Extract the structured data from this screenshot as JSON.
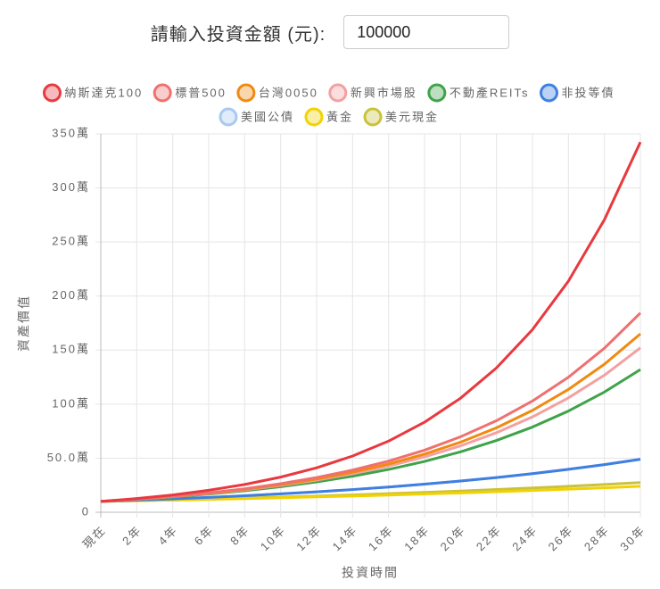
{
  "input": {
    "label": "請輸入投資金額 (元):",
    "value": "100000"
  },
  "chart_data": {
    "type": "line",
    "y_label": "資產價值",
    "x_label": "投資時間",
    "categories": [
      "現在",
      "2年",
      "4年",
      "6年",
      "8年",
      "10年",
      "12年",
      "14年",
      "16年",
      "18年",
      "20年",
      "22年",
      "24年",
      "26年",
      "28年",
      "30年"
    ],
    "ylim": [
      0,
      3500000
    ],
    "yticks": [
      0,
      {
        "value": 500000,
        "label": "50.0萬"
      },
      {
        "value": 1000000,
        "label": "100萬"
      },
      {
        "value": 1500000,
        "label": "150萬"
      },
      {
        "value": 2000000,
        "label": "200萬"
      },
      {
        "value": 2500000,
        "label": "250萬"
      },
      {
        "value": 3000000,
        "label": "300萬"
      },
      {
        "value": 3500000,
        "label": "350萬"
      }
    ],
    "grid": true,
    "legend": "top",
    "series": [
      {
        "name": "納斯達克100",
        "color": "#e8393f",
        "values": [
          100000,
          127000,
          160000,
          203000,
          257000,
          325000,
          411000,
          520000,
          658000,
          833000,
          1055000,
          1335000,
          1689000,
          2138000,
          2706000,
          3424000
        ]
      },
      {
        "name": "標普500",
        "color": "#f07070",
        "values": [
          100000,
          121000,
          147000,
          179000,
          217000,
          264000,
          321000,
          390000,
          473000,
          574000,
          698000,
          847000,
          1029000,
          1249000,
          1517000,
          1843000
        ]
      },
      {
        "name": "台灣0050",
        "color": "#f08a10",
        "values": [
          100000,
          121000,
          145000,
          175000,
          211000,
          255000,
          307000,
          370000,
          446000,
          538000,
          648000,
          781000,
          942000,
          1136000,
          1369000,
          1650000
        ]
      },
      {
        "name": "新興市場股",
        "color": "#f4a0a0",
        "values": [
          100000,
          120000,
          144000,
          172000,
          207000,
          248000,
          297000,
          356000,
          427000,
          512000,
          614000,
          736000,
          882000,
          1058000,
          1268000,
          1520000
        ]
      },
      {
        "name": "不動產REITs",
        "color": "#3fa34a",
        "values": [
          100000,
          119000,
          141000,
          168000,
          199000,
          236000,
          281000,
          333000,
          396000,
          470000,
          559000,
          664000,
          788000,
          936000,
          1112000,
          1320000
        ]
      },
      {
        "name": "非投等債",
        "color": "#3f7fe0",
        "values": [
          100000,
          111000,
          124000,
          137000,
          153000,
          170000,
          189000,
          210000,
          233000,
          260000,
          289000,
          321000,
          357000,
          397000,
          441000,
          490000
        ]
      },
      {
        "name": "美國公債",
        "color": "#a9c9f2",
        "values": [
          100000,
          111000,
          124000,
          137000,
          153000,
          170000,
          189000,
          210000,
          233000,
          260000,
          289000,
          321000,
          357000,
          397000,
          441000,
          490000
        ]
      },
      {
        "name": "黃金",
        "color": "#f2d200",
        "values": [
          100000,
          106000,
          112000,
          119000,
          126000,
          134000,
          142000,
          150000,
          159000,
          169000,
          179000,
          190000,
          201000,
          214000,
          226000,
          240000
        ]
      },
      {
        "name": "美元現金",
        "color": "#c9c23c",
        "values": [
          100000,
          107000,
          114000,
          122000,
          131000,
          140000,
          150000,
          160000,
          172000,
          184000,
          196000,
          210000,
          225000,
          240000,
          257000,
          275000
        ]
      }
    ]
  }
}
